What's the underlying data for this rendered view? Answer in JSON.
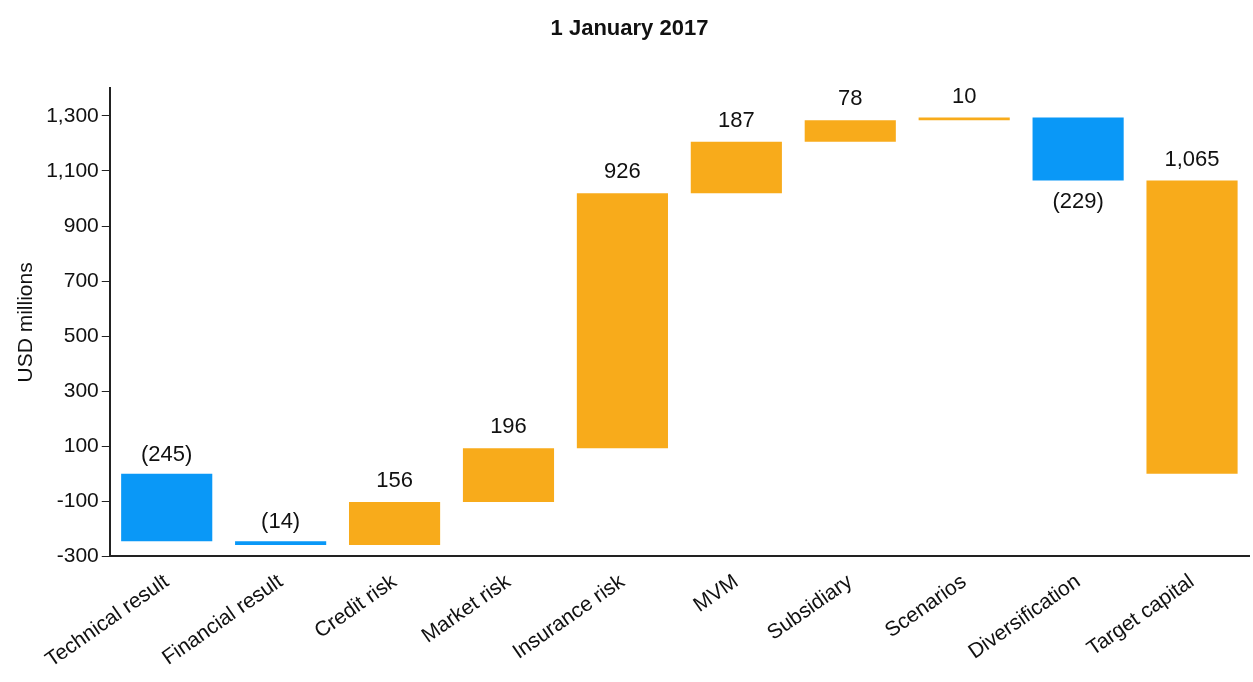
{
  "chart_data": {
    "type": "bar",
    "title": "1 January 2017",
    "ylabel": "USD millions",
    "categories": [
      "Technical result",
      "Financial result",
      "Credit risk",
      "Market risk",
      "Insurance risk",
      "MVM",
      "Subsidiary",
      "Scenarios",
      "Diversification",
      "Target capital"
    ],
    "base": [
      0,
      -245,
      -259,
      -103,
      93,
      1019,
      1206,
      1284,
      1294,
      0
    ],
    "values": [
      -245,
      -14,
      156,
      196,
      926,
      187,
      78,
      10,
      -229,
      1065
    ],
    "colors": [
      "#0a98f7",
      "#0a98f7",
      "#f8ab1b",
      "#f8ab1b",
      "#f8ab1b",
      "#f8ab1b",
      "#f8ab1b",
      "#f8ab1b",
      "#0a98f7",
      "#f8ab1b"
    ],
    "value_labels": [
      "(245)",
      "(14)",
      "156",
      "196",
      "926",
      "187",
      "78",
      "10",
      "(229)",
      "1,065"
    ],
    "ylim": [
      -300,
      1400
    ],
    "yticks": [
      {
        "value": -300,
        "label": "-300"
      },
      {
        "value": -100,
        "label": "-100"
      },
      {
        "value": 100,
        "label": "100"
      },
      {
        "value": 300,
        "label": "300"
      },
      {
        "value": 500,
        "label": "500"
      },
      {
        "value": 700,
        "label": "700"
      },
      {
        "value": 900,
        "label": "900"
      },
      {
        "value": 1100,
        "label": "1,100"
      },
      {
        "value": 1300,
        "label": "1,300"
      }
    ],
    "grid": false,
    "legend": false
  }
}
